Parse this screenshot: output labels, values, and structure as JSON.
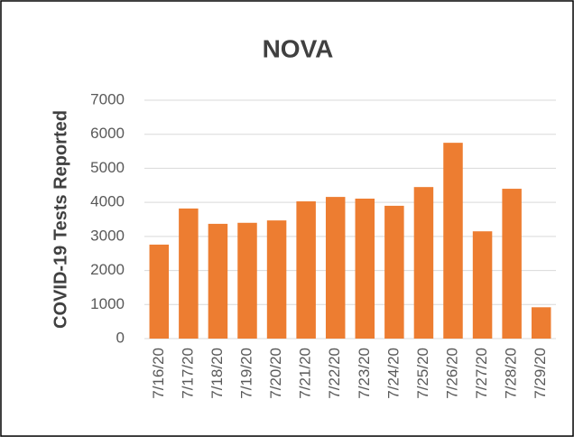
{
  "chart_data": {
    "type": "bar",
    "title": "NOVA",
    "y_label": "COVID-19 Tests Reported",
    "categories": [
      "7/16/20",
      "7/17/20",
      "7/18/20",
      "7/19/20",
      "7/20/20",
      "7/21/20",
      "7/22/20",
      "7/23/20",
      "7/24/20",
      "7/25/20",
      "7/26/20",
      "7/27/20",
      "7/28/20",
      "7/29/20"
    ],
    "values": [
      2760,
      3820,
      3370,
      3400,
      3470,
      4030,
      4160,
      4110,
      3900,
      4450,
      5750,
      3150,
      4400,
      920
    ],
    "color": "#ed7d31",
    "ylim": [
      0,
      7000
    ],
    "yticks": [
      0,
      1000,
      2000,
      3000,
      4000,
      5000,
      6000,
      7000
    ],
    "grid": true
  }
}
